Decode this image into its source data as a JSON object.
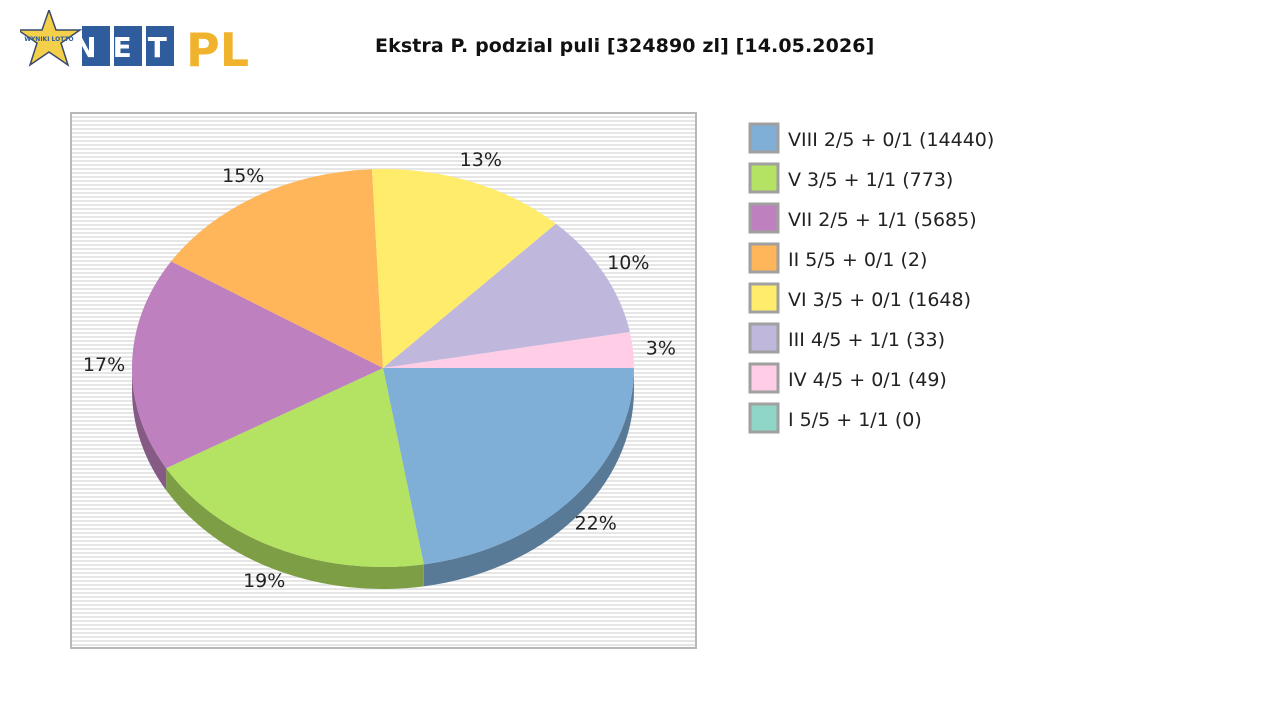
{
  "header": {
    "logo_badge": "WYNIKI LOTTO",
    "logo_net": "NET",
    "logo_pl": "PL"
  },
  "colors": {
    "logo_tile": "#2f5c9c",
    "logo_pl": "#f0b32e",
    "star": "#f4cf4a"
  },
  "chart_data": {
    "type": "pie",
    "title": "Ekstra P. podzial puli [324890 zl] [14.05.2026]",
    "legend_position": "right",
    "slices": [
      {
        "legend": "VIII 2/5 + 0/1 (14440)",
        "pct_label": "22%",
        "value": 22.4,
        "color": "#7faed6"
      },
      {
        "legend": "V 3/5 + 1/1 (773)",
        "pct_label": "19%",
        "value": 19.2,
        "color": "#b4e262"
      },
      {
        "legend": "VII 2/5 + 1/1 (5685)",
        "pct_label": "17%",
        "value": 17.4,
        "color": "#be80be"
      },
      {
        "legend": "II 5/5 + 0/1 (2)",
        "pct_label": "15%",
        "value": 15.3,
        "color": "#ffb55a"
      },
      {
        "legend": "VI 3/5 + 0/1 (1648)",
        "pct_label": "13%",
        "value": 12.8,
        "color": "#ffec6a"
      },
      {
        "legend": "III 4/5 + 1/1 (33)",
        "pct_label": "10%",
        "value": 10.0,
        "color": "#bfb8dc"
      },
      {
        "legend": "IV 4/5 + 0/1 (49)",
        "pct_label": "3%",
        "value": 2.9,
        "color": "#ffcde6"
      },
      {
        "legend": "I 5/5 + 1/1 (0)",
        "pct_label": "",
        "value": 0,
        "color": "#8fd6c6"
      }
    ]
  }
}
